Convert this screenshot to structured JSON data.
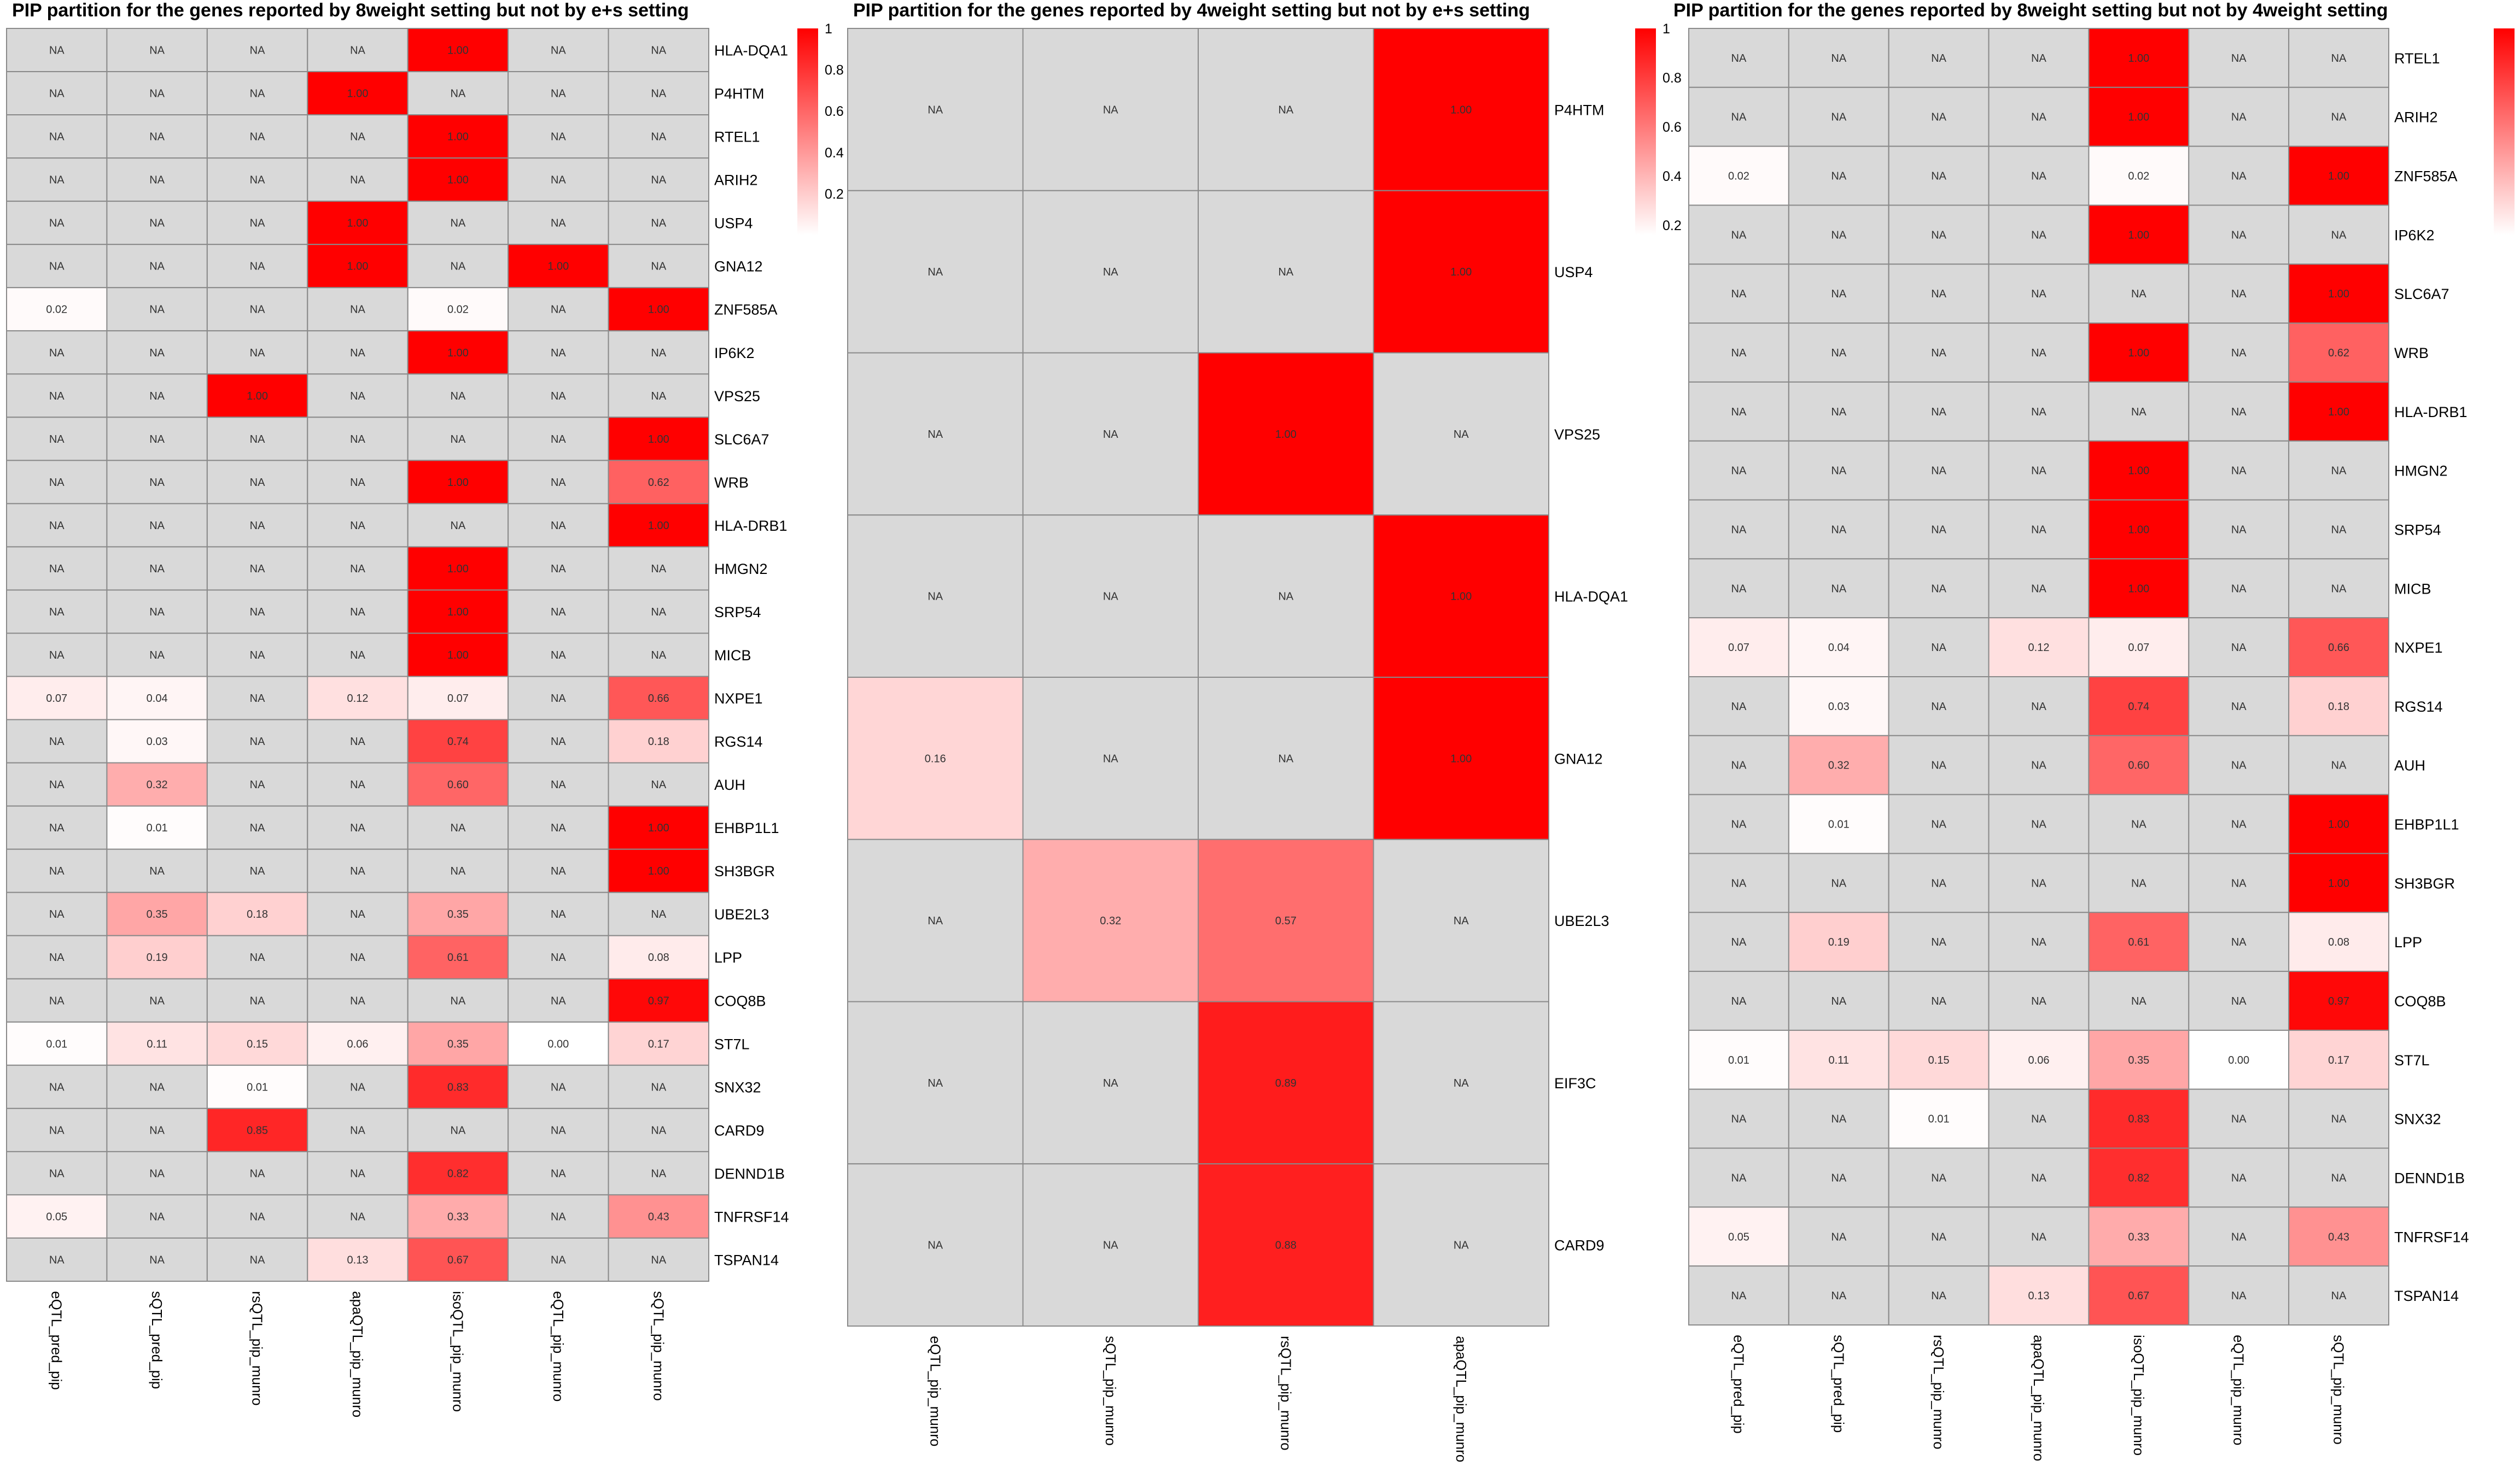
{
  "colors": {
    "na_fill": "#d9d9d9",
    "low": "#ffffff",
    "high": "#ff0000",
    "grid": "#8a8a8a",
    "text": "#000000",
    "cell_text": "#333333"
  },
  "legend_ticks": [
    0.2,
    0.4,
    0.6,
    0.8,
    1
  ],
  "chart_data": [
    {
      "type": "heatmap",
      "title": "PIP partition for the genes reported by 8weight setting but not by e+s setting",
      "columns": [
        "eQTL_pred_pip",
        "sQTL_pred_pip",
        "rsQTL_pip_munro",
        "apaQTL_pip_munro",
        "isoQTL_pip_munro",
        "eQTL_pip_munro",
        "sQTL_pip_munro"
      ],
      "rows": [
        "HLA-DQA1",
        "P4HTM",
        "RTEL1",
        "ARIH2",
        "USP4",
        "GNA12",
        "ZNF585A",
        "IP6K2",
        "VPS25",
        "SLC6A7",
        "WRB",
        "HLA-DRB1",
        "HMGN2",
        "SRP54",
        "MICB",
        "NXPE1",
        "RGS14",
        "AUH",
        "EHBP1L1",
        "SH3BGR",
        "UBE2L3",
        "LPP",
        "COQ8B",
        "ST7L",
        "SNX32",
        "CARD9",
        "DENND1B",
        "TNFRSF14",
        "TSPAN14"
      ],
      "values": [
        [
          null,
          null,
          null,
          null,
          1.0,
          null,
          null
        ],
        [
          null,
          null,
          null,
          1.0,
          null,
          null,
          null
        ],
        [
          null,
          null,
          null,
          null,
          1.0,
          null,
          null
        ],
        [
          null,
          null,
          null,
          null,
          1.0,
          null,
          null
        ],
        [
          null,
          null,
          null,
          1.0,
          null,
          null,
          null
        ],
        [
          null,
          null,
          null,
          1.0,
          null,
          1.0,
          null
        ],
        [
          0.02,
          null,
          null,
          null,
          0.02,
          null,
          1.0
        ],
        [
          null,
          null,
          null,
          null,
          1.0,
          null,
          null
        ],
        [
          null,
          null,
          1.0,
          null,
          null,
          null,
          null
        ],
        [
          null,
          null,
          null,
          null,
          null,
          null,
          1.0
        ],
        [
          null,
          null,
          null,
          null,
          1.0,
          null,
          0.62
        ],
        [
          null,
          null,
          null,
          null,
          null,
          null,
          1.0
        ],
        [
          null,
          null,
          null,
          null,
          1.0,
          null,
          null
        ],
        [
          null,
          null,
          null,
          null,
          1.0,
          null,
          null
        ],
        [
          null,
          null,
          null,
          null,
          1.0,
          null,
          null
        ],
        [
          0.07,
          0.04,
          null,
          0.12,
          0.07,
          null,
          0.66
        ],
        [
          null,
          0.03,
          null,
          null,
          0.74,
          null,
          0.18
        ],
        [
          null,
          0.32,
          null,
          null,
          0.6,
          null,
          null
        ],
        [
          null,
          0.01,
          null,
          null,
          null,
          null,
          1.0
        ],
        [
          null,
          null,
          null,
          null,
          null,
          null,
          1.0
        ],
        [
          null,
          0.35,
          0.18,
          null,
          0.35,
          null,
          null
        ],
        [
          null,
          0.19,
          null,
          null,
          0.61,
          null,
          0.08
        ],
        [
          null,
          null,
          null,
          null,
          null,
          null,
          0.97
        ],
        [
          0.01,
          0.11,
          0.15,
          0.06,
          0.35,
          0.0,
          0.17
        ],
        [
          null,
          null,
          0.01,
          null,
          0.83,
          null,
          null
        ],
        [
          null,
          null,
          0.85,
          null,
          null,
          null,
          null
        ],
        [
          null,
          null,
          null,
          null,
          0.82,
          null,
          null
        ],
        [
          0.05,
          null,
          null,
          null,
          0.33,
          null,
          0.43
        ],
        [
          null,
          null,
          null,
          0.13,
          0.67,
          null,
          null
        ]
      ],
      "legend_range": [
        0,
        1
      ]
    },
    {
      "type": "heatmap",
      "title": "PIP partition for the genes reported by 4weight setting but not by e+s setting",
      "columns": [
        "eQTL_pip_munro",
        "sQTL_pip_munro",
        "rsQTL_pip_munro",
        "apaQTL_pip_munro"
      ],
      "rows": [
        "P4HTM",
        "USP4",
        "VPS25",
        "HLA-DQA1",
        "GNA12",
        "UBE2L3",
        "EIF3C",
        "CARD9"
      ],
      "values": [
        [
          null,
          null,
          null,
          1.0
        ],
        [
          null,
          null,
          null,
          1.0
        ],
        [
          null,
          null,
          1.0,
          null
        ],
        [
          null,
          null,
          null,
          1.0
        ],
        [
          0.16,
          null,
          null,
          1.0
        ],
        [
          null,
          0.32,
          0.57,
          null
        ],
        [
          null,
          null,
          0.89,
          null
        ],
        [
          null,
          null,
          0.88,
          null
        ]
      ],
      "legend_range": [
        0.16,
        1
      ]
    },
    {
      "type": "heatmap",
      "title": "PIP partition for the genes reported by 8weight setting but not by 4weight setting",
      "columns": [
        "eQTL_pred_pip",
        "sQTL_pred_pip",
        "rsQTL_pip_munro",
        "apaQTL_pip_munro",
        "isoQTL_pip_munro",
        "eQTL_pip_munro",
        "sQTL_pip_munro"
      ],
      "rows": [
        "RTEL1",
        "ARIH2",
        "ZNF585A",
        "IP6K2",
        "SLC6A7",
        "WRB",
        "HLA-DRB1",
        "HMGN2",
        "SRP54",
        "MICB",
        "NXPE1",
        "RGS14",
        "AUH",
        "EHBP1L1",
        "SH3BGR",
        "LPP",
        "COQ8B",
        "ST7L",
        "SNX32",
        "DENND1B",
        "TNFRSF14",
        "TSPAN14"
      ],
      "values": [
        [
          null,
          null,
          null,
          null,
          1.0,
          null,
          null
        ],
        [
          null,
          null,
          null,
          null,
          1.0,
          null,
          null
        ],
        [
          0.02,
          null,
          null,
          null,
          0.02,
          null,
          1.0
        ],
        [
          null,
          null,
          null,
          null,
          1.0,
          null,
          null
        ],
        [
          null,
          null,
          null,
          null,
          null,
          null,
          1.0
        ],
        [
          null,
          null,
          null,
          null,
          1.0,
          null,
          0.62
        ],
        [
          null,
          null,
          null,
          null,
          null,
          null,
          1.0
        ],
        [
          null,
          null,
          null,
          null,
          1.0,
          null,
          null
        ],
        [
          null,
          null,
          null,
          null,
          1.0,
          null,
          null
        ],
        [
          null,
          null,
          null,
          null,
          1.0,
          null,
          null
        ],
        [
          0.07,
          0.04,
          null,
          0.12,
          0.07,
          null,
          0.66
        ],
        [
          null,
          0.03,
          null,
          null,
          0.74,
          null,
          0.18
        ],
        [
          null,
          0.32,
          null,
          null,
          0.6,
          null,
          null
        ],
        [
          null,
          0.01,
          null,
          null,
          null,
          null,
          1.0
        ],
        [
          null,
          null,
          null,
          null,
          null,
          null,
          1.0
        ],
        [
          null,
          0.19,
          null,
          null,
          0.61,
          null,
          0.08
        ],
        [
          null,
          null,
          null,
          null,
          null,
          null,
          0.97
        ],
        [
          0.01,
          0.11,
          0.15,
          0.06,
          0.35,
          0.0,
          0.17
        ],
        [
          null,
          null,
          0.01,
          null,
          0.83,
          null,
          null
        ],
        [
          null,
          null,
          null,
          null,
          0.82,
          null,
          null
        ],
        [
          0.05,
          null,
          null,
          null,
          0.33,
          null,
          0.43
        ],
        [
          null,
          null,
          null,
          0.13,
          0.67,
          null,
          null
        ]
      ],
      "legend_range": [
        0,
        1
      ]
    }
  ]
}
